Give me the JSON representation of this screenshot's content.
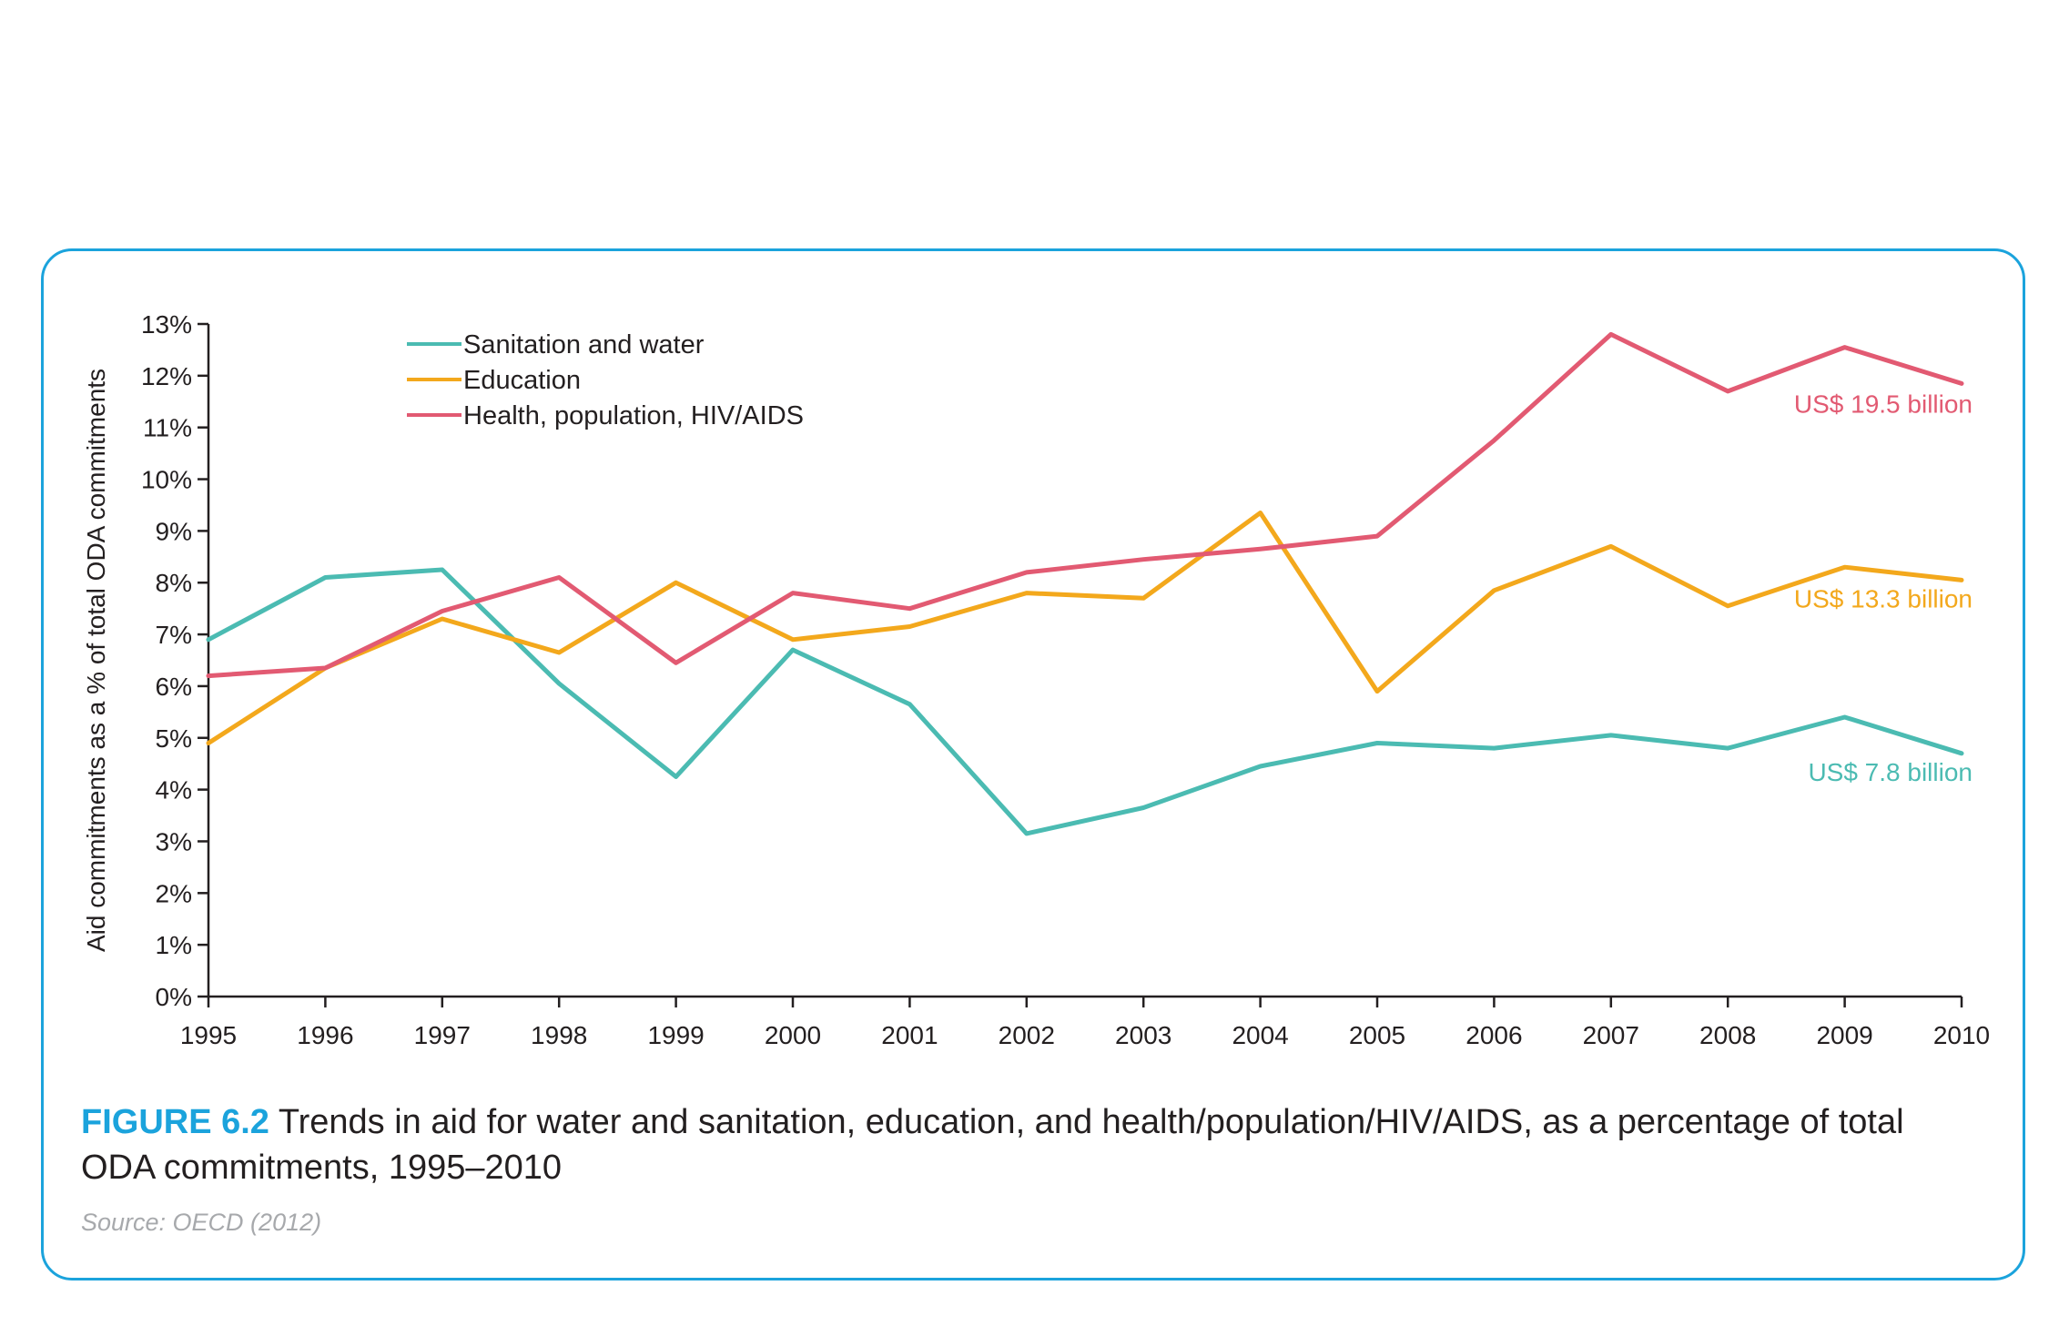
{
  "colors": {
    "frame": "#1ba3dc",
    "figure_label": "#1ba3dc",
    "sanitation": "#4bbbb2",
    "education": "#f3a81c",
    "health": "#e25a72",
    "axis": "#231f20",
    "text": "#231f20",
    "source": "#a7a9ac"
  },
  "figure": {
    "label": "FIGURE 6.2",
    "caption": " Trends in aid for water and sanitation, education, and health/population/HIV/AIDS, as a percentage of total ODA commitments, 1995–2010",
    "source": "Source: OECD (2012)"
  },
  "chart_data": {
    "type": "line",
    "title": "",
    "xlabel": "",
    "ylabel": "Aid commitments as a % of total ODA commitments",
    "x": [
      "1995",
      "1996",
      "1997",
      "1998",
      "1999",
      "2000",
      "2001",
      "2002",
      "2003",
      "2004",
      "2005",
      "2006",
      "2007",
      "2008",
      "2009",
      "2010"
    ],
    "ylim": [
      0,
      13
    ],
    "y_ticks": [
      "0%",
      "1%",
      "2%",
      "3%",
      "4%",
      "5%",
      "6%",
      "7%",
      "8%",
      "9%",
      "10%",
      "11%",
      "12%",
      "13%"
    ],
    "grid": false,
    "legend_position": "top-left",
    "series": [
      {
        "name": "Sanitation and water",
        "color": "#4bbbb2",
        "values": [
          6.9,
          8.1,
          8.25,
          6.05,
          4.25,
          6.7,
          5.65,
          3.15,
          3.65,
          4.45,
          4.9,
          4.8,
          5.05,
          4.8,
          5.4,
          4.7
        ],
        "end_label": "US$ 7.8 billion"
      },
      {
        "name": "Education",
        "color": "#f3a81c",
        "values": [
          4.9,
          6.35,
          7.3,
          6.65,
          8.0,
          6.9,
          7.15,
          7.8,
          7.7,
          9.35,
          5.9,
          7.85,
          8.7,
          7.55,
          8.3,
          8.05
        ],
        "end_label": "US$ 13.3 billion"
      },
      {
        "name": "Health, population, HIV/AIDS",
        "color": "#e25a72",
        "values": [
          6.2,
          6.35,
          7.45,
          8.1,
          6.45,
          7.8,
          7.5,
          8.2,
          8.45,
          8.65,
          8.9,
          10.75,
          12.8,
          11.7,
          12.55,
          11.85
        ],
        "end_label": "US$ 19.5 billion"
      }
    ]
  }
}
